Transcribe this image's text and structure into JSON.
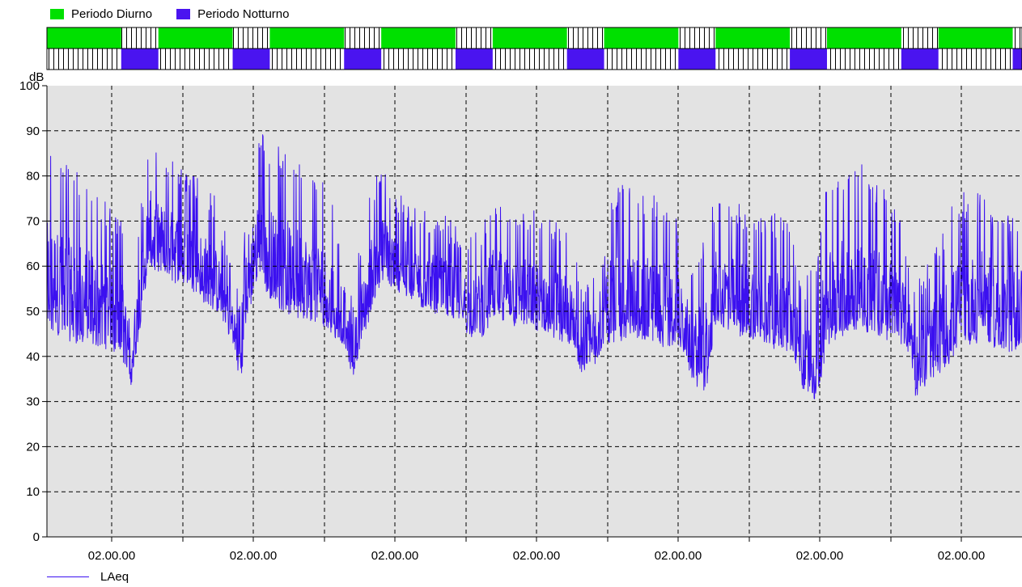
{
  "legend_top": [
    {
      "label": "Periodo Diurno",
      "color": "#00e000"
    },
    {
      "label": "Periodo Notturno",
      "color": "#4a14f0"
    }
  ],
  "colors": {
    "plot_bg": "#e3e3e3",
    "series": "#3b10f0",
    "series_light": "#7a60f5",
    "day": "#00e000",
    "night": "#4a14f0",
    "grid": "#000000"
  },
  "chart_data": {
    "type": "line",
    "ylabel": "dB",
    "ylim": [
      0,
      100
    ],
    "yticks": [
      0,
      10,
      20,
      30,
      40,
      50,
      60,
      70,
      80,
      90,
      100
    ],
    "xtick_labels": [
      "02.00.00",
      "02.00.00",
      "02.00.00",
      "02.00.00",
      "02.00.00",
      "02.00.00",
      "02.00.00"
    ],
    "grid": true,
    "legend_bottom": "LAeq",
    "series": [
      {
        "name": "LAeq",
        "envelope_x_hours": [
          0,
          6,
          12,
          16,
          18,
          19,
          22,
          24,
          30,
          36,
          40,
          42,
          43,
          46,
          48,
          54,
          60,
          64,
          66,
          67,
          70,
          72,
          78,
          84,
          88,
          90,
          91,
          94,
          96,
          102,
          108,
          112,
          114,
          115,
          118,
          120,
          126,
          132,
          136,
          138,
          139,
          142,
          144,
          150,
          156,
          160,
          162,
          163,
          166,
          168,
          174,
          180,
          184,
          186,
          187,
          190,
          196,
          202,
          204,
          207,
          210
        ],
        "envelope_upper_db": [
          88,
          82,
          76,
          70,
          58,
          62,
          90,
          86,
          82,
          76,
          62,
          52,
          80,
          90,
          88,
          84,
          78,
          66,
          55,
          62,
          80,
          82,
          74,
          72,
          70,
          68,
          66,
          70,
          76,
          74,
          72,
          70,
          62,
          55,
          62,
          78,
          78,
          76,
          70,
          58,
          60,
          68,
          76,
          74,
          72,
          70,
          60,
          58,
          62,
          80,
          84,
          78,
          70,
          60,
          55,
          62,
          76,
          78,
          74,
          72,
          74
        ],
        "envelope_lower_db": [
          45,
          43,
          42,
          40,
          33,
          38,
          60,
          58,
          55,
          50,
          42,
          33,
          48,
          58,
          52,
          48,
          46,
          42,
          35,
          40,
          50,
          56,
          52,
          49,
          48,
          46,
          44,
          44,
          48,
          46,
          44,
          42,
          40,
          36,
          38,
          42,
          44,
          42,
          42,
          38,
          34,
          32,
          46,
          44,
          42,
          40,
          36,
          32,
          30,
          42,
          46,
          44,
          42,
          40,
          31,
          34,
          40,
          44,
          42,
          40,
          42
        ]
      }
    ],
    "periods": {
      "hours_per_day": 24,
      "day_start_hour": 0,
      "day_length_hours": 16,
      "x_range_hours": [
        0,
        210
      ]
    }
  }
}
